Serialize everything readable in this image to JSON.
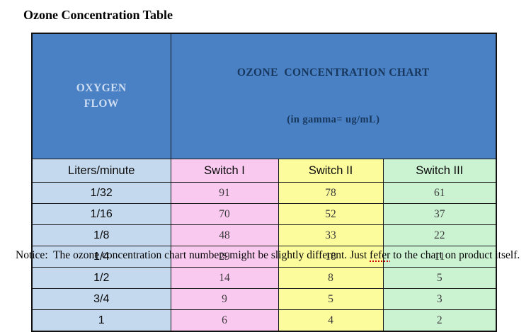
{
  "page": {
    "title": "Ozone Concentration Table"
  },
  "table": {
    "header": {
      "oxygen_line1": "OXYGEN",
      "oxygen_line2": "FLOW",
      "chart_line1": "OZONE  CONCENTRATION CHART",
      "chart_line2": "(in gamma= ug/mL)"
    },
    "subheader": {
      "unit": "Liters/minute",
      "switch1": "Switch I",
      "switch2": "Switch II",
      "switch3": "Switch III"
    },
    "rows": [
      {
        "flow": "1/32",
        "s1": "91",
        "s2": "78",
        "s3": "61"
      },
      {
        "flow": "1/16",
        "s1": "70",
        "s2": "52",
        "s3": "37"
      },
      {
        "flow": "1/8",
        "s1": "48",
        "s2": "33",
        "s3": "22"
      },
      {
        "flow": "1/4",
        "s1": "29",
        "s2": "18",
        "s3": "11"
      },
      {
        "flow": "1/2",
        "s1": "14",
        "s2": "8",
        "s3": "5"
      },
      {
        "flow": "3/4",
        "s1": "9",
        "s2": "5",
        "s3": "3"
      },
      {
        "flow": "1",
        "s1": "6",
        "s2": "4",
        "s3": "2"
      }
    ]
  },
  "notice": {
    "prefix": "Notice:  The ozone concentration chart numbers might be slightly different. Just ",
    "typo": "fefer",
    "suffix": " to the chart on product itself."
  },
  "colors": {
    "header_blue": "#4a80c4",
    "header_text_light": "#cdddf2",
    "header_text_dark": "#17375d",
    "flow_column_blue": "#c5d9ee",
    "switch1_pink": "#fac9f0",
    "switch2_yellow": "#fdfc9c",
    "switch3_green": "#cbf3d2",
    "border": "#1a1a1a",
    "spellcheck_red": "#cc0000"
  }
}
